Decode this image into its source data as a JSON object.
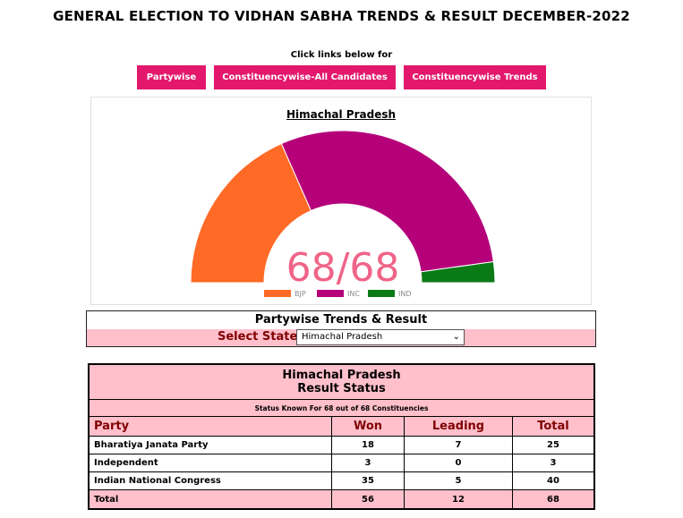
{
  "header": {
    "title": "GENERAL ELECTION TO VIDHAN SABHA TRENDS & RESULT DECEMBER-2022"
  },
  "nav": {
    "note": "Click links below for",
    "buttons": [
      "Partywise",
      "Constituencywise-All Candidates",
      "Constituencywise Trends"
    ]
  },
  "chart_data": {
    "type": "pie",
    "title": "Himachal Pradesh",
    "center_label": "68/68",
    "total": 68,
    "categories": [
      "BJP",
      "INC",
      "IND"
    ],
    "values": [
      25,
      40,
      3
    ],
    "colors": [
      "#ff6a26",
      "#b5007a",
      "#0a7a16"
    ],
    "legend_position": "bottom",
    "note": "semi-circle donut"
  },
  "trends": {
    "title": "Partywise Trends & Result",
    "select_label": "Select State",
    "selected_state": "Himachal Pradesh"
  },
  "results": {
    "state": "Himachal Pradesh",
    "subtitle": "Result Status",
    "status_note": "Status Known For 68 out of 68 Constituencies",
    "columns": [
      "Party",
      "Won",
      "Leading",
      "Total"
    ],
    "rows": [
      [
        "Bharatiya Janata Party",
        "18",
        "7",
        "25"
      ],
      [
        "Independent",
        "3",
        "0",
        "3"
      ],
      [
        "Indian National Congress",
        "35",
        "5",
        "40"
      ]
    ],
    "total_row": [
      "Total",
      "56",
      "12",
      "68"
    ]
  }
}
